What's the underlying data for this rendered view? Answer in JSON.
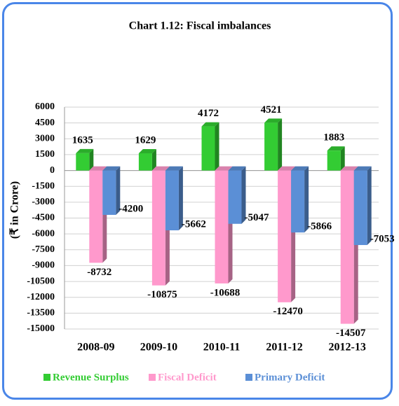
{
  "chart_data": {
    "type": "bar",
    "title": "Chart 1.12: Fiscal imbalances",
    "y_label": "(₹ in Crore)",
    "categories": [
      "2008-09",
      "2009-10",
      "2010-11",
      "2011-12",
      "2012-13"
    ],
    "series": [
      {
        "name": "Revenue Surplus",
        "color": "#33cc33",
        "values": [
          1635,
          1629,
          4172,
          4521,
          1883
        ]
      },
      {
        "name": "Fiscal Deficit",
        "color": "#ff99cc",
        "values": [
          -8732,
          -10875,
          -10688,
          -12470,
          -14507
        ]
      },
      {
        "name": "Primary Deficit",
        "color": "#5b8fd6",
        "values": [
          -4200,
          -5662,
          -5047,
          -5866,
          -7053
        ]
      }
    ],
    "ylim": [
      -15000,
      6000
    ],
    "yticks": [
      6000,
      4500,
      3000,
      1500,
      0,
      -1500,
      -3000,
      -4500,
      -6000,
      -7500,
      -9000,
      -10500,
      -12000,
      -13500,
      -15000
    ],
    "grid": true,
    "legend": "bottom"
  }
}
